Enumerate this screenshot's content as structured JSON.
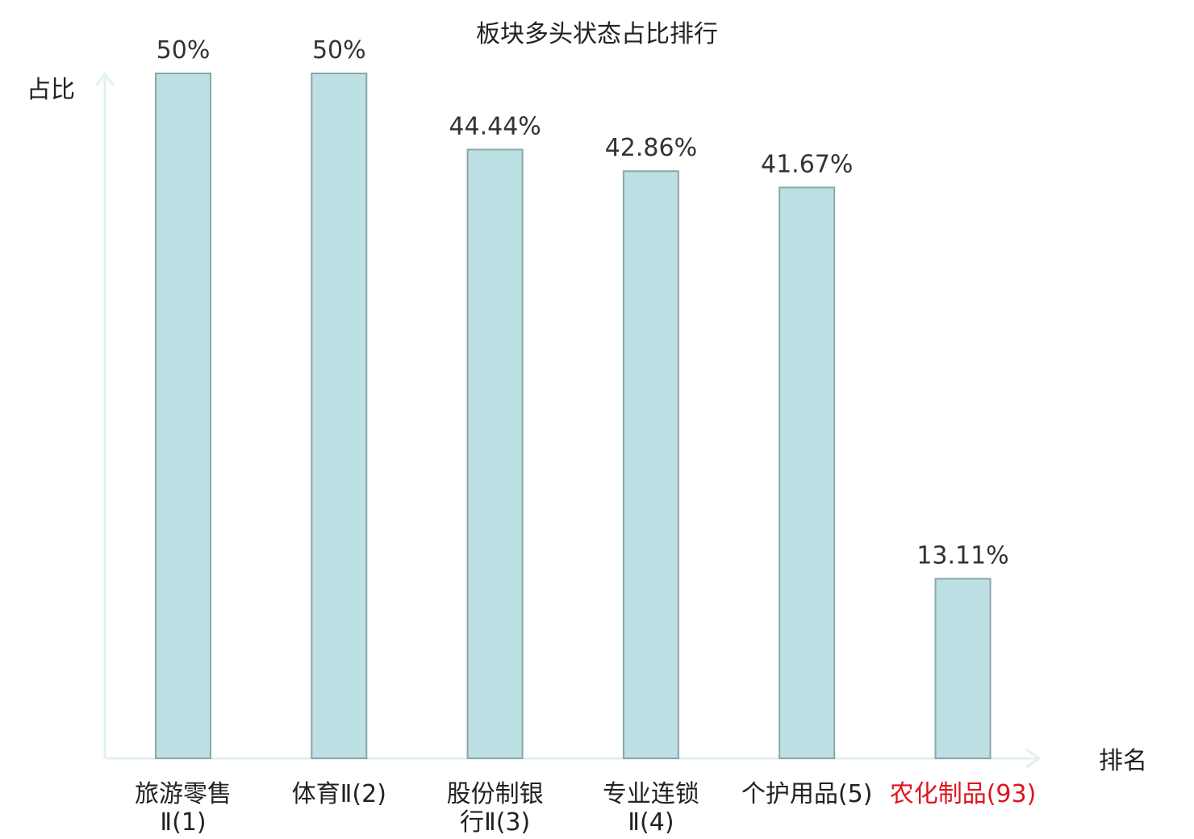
{
  "chart_data": {
    "type": "bar",
    "title": "板块多头状态占比排行",
    "ylabel": "占比",
    "xlabel": "排名",
    "categories": [
      {
        "name": "旅游零售",
        "rank": "Ⅱ(1)",
        "lines": [
          "旅游零售",
          "Ⅱ(1)"
        ],
        "highlight": false
      },
      {
        "name": "体育",
        "rank": "Ⅱ(2)",
        "lines": [
          "体育Ⅱ(2)"
        ],
        "highlight": false
      },
      {
        "name": "股份制银行",
        "rank": "Ⅱ(3)",
        "lines": [
          "股份制银",
          "行Ⅱ(3)"
        ],
        "highlight": false
      },
      {
        "name": "专业连锁",
        "rank": "Ⅱ(4)",
        "lines": [
          "专业连锁",
          "Ⅱ(4)"
        ],
        "highlight": false
      },
      {
        "name": "个护用品",
        "rank": "(5)",
        "lines": [
          "个护用品(5)"
        ],
        "highlight": false
      },
      {
        "name": "农化制品",
        "rank": "(93)",
        "lines": [
          "农化制品(93)"
        ],
        "highlight": true
      }
    ],
    "values": [
      50,
      50,
      44.44,
      42.86,
      41.67,
      13.11
    ],
    "value_labels": [
      "50%",
      "50%",
      "44.44%",
      "42.86%",
      "41.67%",
      "13.11%"
    ],
    "ylim": [
      0,
      50
    ],
    "grid": false,
    "legend": "none",
    "colors": {
      "bar_fill": "#bce0e3",
      "bar_stroke": "#8aa6a9",
      "axis": "#e0f2ef",
      "highlight_text": "#e0141e",
      "normal_text": "#222222"
    }
  }
}
